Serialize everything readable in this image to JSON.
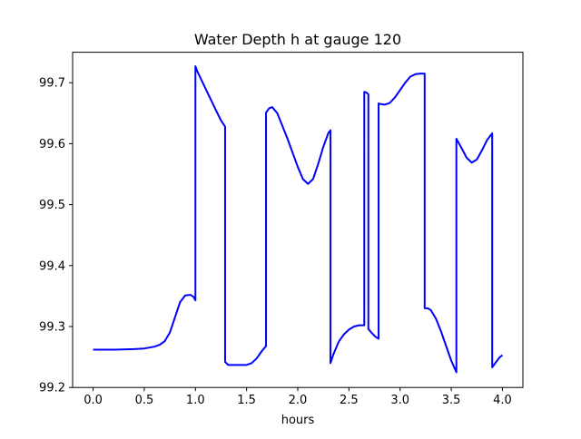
{
  "chart_data": {
    "type": "line",
    "title": "Water Depth h at gauge 120",
    "xlabel": "hours",
    "ylabel": "",
    "xlim": [
      -0.2,
      4.2
    ],
    "ylim": [
      99.2,
      99.75
    ],
    "xticks": [
      0.0,
      0.5,
      1.0,
      1.5,
      2.0,
      2.5,
      3.0,
      3.5,
      4.0
    ],
    "xtick_labels": [
      "0.0",
      "0.5",
      "1.0",
      "1.5",
      "2.0",
      "2.5",
      "3.0",
      "3.5",
      "4.0"
    ],
    "yticks": [
      99.2,
      99.3,
      99.4,
      99.5,
      99.6,
      99.7
    ],
    "ytick_labels": [
      "99.2",
      "99.3",
      "99.4",
      "99.5",
      "99.6",
      "99.7"
    ],
    "grid": false,
    "legend": "none",
    "series": [
      {
        "color": "#0000ff",
        "x": [
          0.0,
          0.2,
          0.4,
          0.5,
          0.6,
          0.65,
          0.7,
          0.75,
          0.8,
          0.85,
          0.9,
          0.95,
          0.98,
          1.0,
          1.0,
          1.02,
          1.1,
          1.2,
          1.25,
          1.29,
          1.29,
          1.32,
          1.4,
          1.5,
          1.55,
          1.6,
          1.65,
          1.69,
          1.69,
          1.72,
          1.75,
          1.8,
          1.9,
          2.0,
          2.05,
          2.1,
          2.15,
          2.2,
          2.25,
          2.3,
          2.32,
          2.32,
          2.35,
          2.4,
          2.45,
          2.5,
          2.55,
          2.6,
          2.65,
          2.65,
          2.67,
          2.69,
          2.69,
          2.72,
          2.76,
          2.79,
          2.79,
          2.81,
          2.85,
          2.9,
          2.95,
          3.0,
          3.05,
          3.1,
          3.15,
          3.2,
          3.24,
          3.24,
          3.27,
          3.3,
          3.35,
          3.4,
          3.45,
          3.5,
          3.55,
          3.55,
          3.6,
          3.65,
          3.7,
          3.75,
          3.8,
          3.85,
          3.9,
          3.9,
          3.93,
          3.97,
          4.0
        ],
        "y": [
          99.262,
          99.262,
          99.263,
          99.264,
          99.267,
          99.27,
          99.276,
          99.29,
          99.315,
          99.34,
          99.351,
          99.352,
          99.349,
          99.343,
          99.727,
          99.718,
          99.69,
          99.655,
          99.638,
          99.628,
          99.242,
          99.237,
          99.237,
          99.237,
          99.24,
          99.248,
          99.26,
          99.268,
          99.651,
          99.658,
          99.66,
          99.65,
          99.608,
          99.562,
          99.542,
          99.534,
          99.542,
          99.567,
          99.595,
          99.618,
          99.622,
          99.24,
          99.255,
          99.275,
          99.287,
          99.295,
          99.3,
          99.302,
          99.302,
          99.685,
          99.684,
          99.681,
          99.296,
          99.29,
          99.283,
          99.28,
          99.666,
          99.665,
          99.664,
          99.667,
          99.676,
          99.688,
          99.7,
          99.71,
          99.714,
          99.715,
          99.715,
          99.33,
          99.33,
          99.327,
          99.313,
          99.292,
          99.268,
          99.244,
          99.225,
          99.608,
          99.593,
          99.577,
          99.569,
          99.574,
          99.589,
          99.606,
          99.617,
          99.233,
          99.24,
          99.249,
          99.253
        ]
      }
    ]
  }
}
